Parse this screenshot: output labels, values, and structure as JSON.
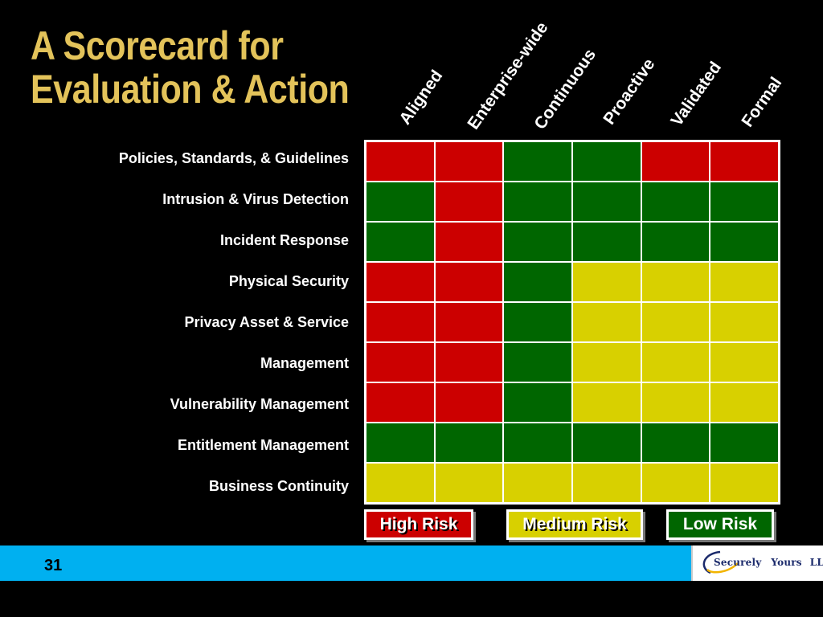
{
  "title": {
    "line1": "A Scorecard for",
    "line2": "Evaluation & Action"
  },
  "columns": [
    "Aligned",
    "Enterprise-wide",
    "Continuous",
    "Proactive",
    "Validated",
    "Formal"
  ],
  "rows": [
    {
      "label": "Policies, Standards, & Guidelines",
      "cells": [
        "red",
        "red",
        "green",
        "green",
        "red",
        "red"
      ]
    },
    {
      "label": "Intrusion & Virus Detection",
      "cells": [
        "green",
        "red",
        "green",
        "green",
        "green",
        "green"
      ]
    },
    {
      "label": "Incident Response",
      "cells": [
        "green",
        "red",
        "green",
        "green",
        "green",
        "green"
      ]
    },
    {
      "label": "Physical Security",
      "cells": [
        "red",
        "red",
        "green",
        "yellow",
        "yellow",
        "yellow"
      ]
    },
    {
      "label": "Privacy Asset & Service",
      "cells": [
        "red",
        "red",
        "green",
        "yellow",
        "yellow",
        "yellow"
      ]
    },
    {
      "label": "Management",
      "cells": [
        "red",
        "red",
        "green",
        "yellow",
        "yellow",
        "yellow"
      ]
    },
    {
      "label": "Vulnerability Management",
      "cells": [
        "red",
        "red",
        "green",
        "yellow",
        "yellow",
        "yellow"
      ]
    },
    {
      "label": "Entitlement  Management",
      "cells": [
        "green",
        "green",
        "green",
        "green",
        "green",
        "green"
      ]
    },
    {
      "label": "Business Continuity",
      "cells": [
        "yellow",
        "yellow",
        "yellow",
        "yellow",
        "yellow",
        "yellow"
      ]
    }
  ],
  "colors": {
    "red": "#cc0000",
    "green": "#006600",
    "yellow": "#d8d000",
    "title": "#e3c35a",
    "footer": "#00b0f0"
  },
  "legend": {
    "high": "High Risk",
    "medium": "Medium Risk",
    "low": "Low Risk"
  },
  "footer": {
    "page_number": "31",
    "logo_word1": "Securely",
    "logo_word2": "Yours",
    "logo_word3": "LLC"
  }
}
